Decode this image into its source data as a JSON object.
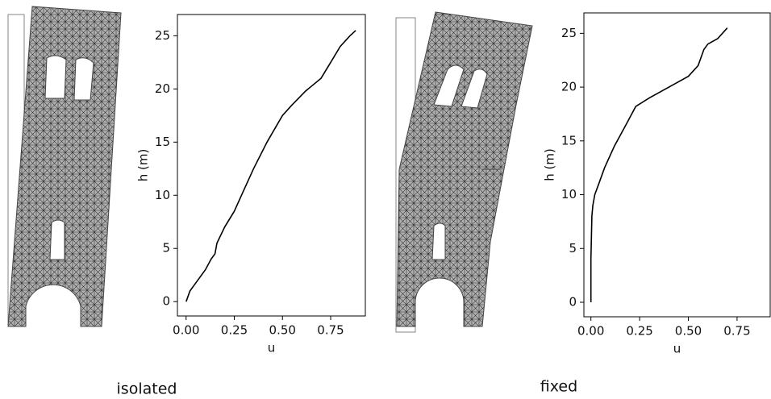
{
  "chart_data": [
    {
      "type": "line",
      "caption": "isolated",
      "x_label": "u",
      "y_label": "h (m)",
      "xlim": [
        -0.045,
        0.93
      ],
      "ylim": [
        -1.35,
        27
      ],
      "xticks": [
        {
          "value": 0,
          "label": "0.00"
        },
        {
          "value": 0.25,
          "label": "0.25"
        },
        {
          "value": 0.5,
          "label": "0.50"
        },
        {
          "value": 0.75,
          "label": "0.75"
        }
      ],
      "yticks": [
        0,
        5,
        10,
        15,
        20,
        25
      ],
      "series": [
        {
          "color": "#000000",
          "x": [
            0,
            0.02,
            0.06,
            0.1,
            0.13,
            0.15,
            0.16,
            0.2,
            0.25,
            0.3,
            0.35,
            0.42,
            0.5,
            0.55,
            0.62,
            0.7,
            0.75,
            0.8,
            0.85,
            0.88
          ],
          "values": [
            0,
            1,
            2,
            3,
            4,
            4.5,
            5.5,
            7,
            8.5,
            10.5,
            12.5,
            15,
            17.5,
            18.5,
            19.8,
            21,
            22.5,
            24,
            25,
            25.5
          ]
        }
      ]
    },
    {
      "type": "line",
      "caption": "fixed",
      "x_label": "u",
      "y_label": "h (m)",
      "xlim": [
        -0.036,
        0.92
      ],
      "ylim": [
        -1.35,
        26.9
      ],
      "xticks": [
        {
          "value": 0,
          "label": "0.00"
        },
        {
          "value": 0.25,
          "label": "0.25"
        },
        {
          "value": 0.5,
          "label": "0.50"
        },
        {
          "value": 0.75,
          "label": "0.75"
        }
      ],
      "yticks": [
        0,
        5,
        10,
        15,
        20,
        25
      ],
      "series": [
        {
          "color": "#000000",
          "x": [
            0,
            0,
            0.005,
            0.01,
            0.02,
            0.04,
            0.07,
            0.12,
            0.18,
            0.23,
            0.3,
            0.4,
            0.5,
            0.55,
            0.58,
            0.6,
            0.65,
            0.7
          ],
          "values": [
            0,
            4,
            8,
            9,
            10,
            11,
            12.5,
            14.5,
            16.5,
            18.2,
            19,
            20,
            21,
            22,
            23.5,
            24,
            24.5,
            25.5
          ]
        }
      ]
    }
  ]
}
